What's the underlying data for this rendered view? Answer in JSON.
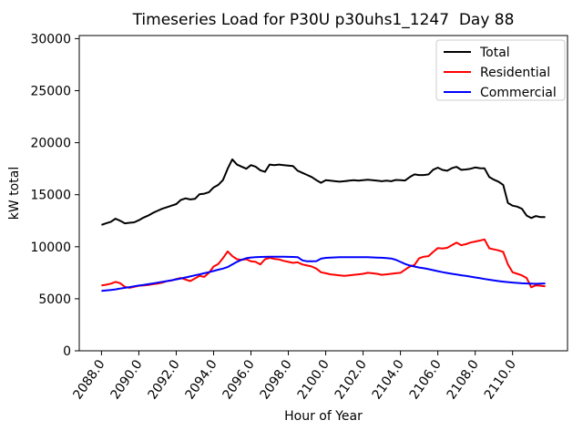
{
  "chart_data": {
    "type": "line",
    "title": "Timeseries Load for P30U p30uhs1_1247  Day 88",
    "xlabel": "Hour of Year",
    "ylabel": "kW total",
    "grid": false,
    "legend_position": "upper right",
    "xlim": [
      2086.81,
      2112.94
    ],
    "ylim": [
      0,
      30300
    ],
    "xtick_values": [
      2088,
      2090,
      2092,
      2094,
      2096,
      2098,
      2100,
      2102,
      2104,
      2106,
      2108,
      2110
    ],
    "xtick_labels": [
      "2088.0",
      "2090.0",
      "2092.0",
      "2094.0",
      "2096.0",
      "2098.0",
      "2100.0",
      "2102.0",
      "2104.0",
      "2106.0",
      "2108.0",
      "2110.0"
    ],
    "ytick_values": [
      0,
      5000,
      10000,
      15000,
      20000,
      25000,
      30000
    ],
    "ytick_labels": [
      "0",
      "5000",
      "10000",
      "15000",
      "20000",
      "25000",
      "30000"
    ],
    "x": [
      2088.0,
      2088.25,
      2088.5,
      2088.75,
      2089.0,
      2089.25,
      2089.5,
      2089.75,
      2090.0,
      2090.25,
      2090.5,
      2090.75,
      2091.0,
      2091.25,
      2091.5,
      2091.75,
      2092.0,
      2092.25,
      2092.5,
      2092.75,
      2093.0,
      2093.25,
      2093.5,
      2093.75,
      2094.0,
      2094.25,
      2094.5,
      2094.75,
      2095.0,
      2095.25,
      2095.5,
      2095.75,
      2096.0,
      2096.25,
      2096.5,
      2096.75,
      2097.0,
      2097.25,
      2097.5,
      2097.75,
      2098.0,
      2098.25,
      2098.5,
      2098.75,
      2099.0,
      2099.25,
      2099.5,
      2099.75,
      2100.0,
      2100.25,
      2100.5,
      2100.75,
      2101.0,
      2101.25,
      2101.5,
      2101.75,
      2102.0,
      2102.25,
      2102.5,
      2102.75,
      2103.0,
      2103.25,
      2103.5,
      2103.75,
      2104.0,
      2104.25,
      2104.5,
      2104.75,
      2105.0,
      2105.25,
      2105.5,
      2105.75,
      2106.0,
      2106.25,
      2106.5,
      2106.75,
      2107.0,
      2107.25,
      2107.5,
      2107.75,
      2108.0,
      2108.25,
      2108.5,
      2108.75,
      2109.0,
      2109.25,
      2109.5,
      2109.75,
      2110.0,
      2110.25,
      2110.5,
      2110.75,
      2111.0,
      2111.25,
      2111.5,
      2111.75
    ],
    "series": [
      {
        "name": "Total",
        "color": "#000000",
        "values": [
          12100,
          12250,
          12400,
          12700,
          12500,
          12250,
          12300,
          12350,
          12550,
          12800,
          13000,
          13250,
          13450,
          13650,
          13800,
          13950,
          14100,
          14500,
          14650,
          14550,
          14600,
          15050,
          15100,
          15250,
          15700,
          15950,
          16400,
          17500,
          18400,
          17900,
          17700,
          17500,
          17850,
          17700,
          17350,
          17200,
          17900,
          17850,
          17900,
          17850,
          17800,
          17750,
          17300,
          17100,
          16900,
          16700,
          16400,
          16150,
          16400,
          16350,
          16300,
          16250,
          16300,
          16350,
          16400,
          16350,
          16400,
          16450,
          16400,
          16350,
          16300,
          16350,
          16300,
          16420,
          16400,
          16370,
          16700,
          16950,
          16890,
          16890,
          16950,
          17400,
          17600,
          17380,
          17300,
          17550,
          17680,
          17390,
          17430,
          17500,
          17620,
          17550,
          17530,
          16700,
          16450,
          16250,
          15950,
          14200,
          13950,
          13850,
          13650,
          13000,
          12760,
          12950,
          12850,
          12850
        ]
      },
      {
        "name": "Residential",
        "color": "#ff0000",
        "values": [
          6280,
          6350,
          6450,
          6620,
          6500,
          6150,
          6050,
          6150,
          6250,
          6280,
          6320,
          6400,
          6450,
          6550,
          6700,
          6750,
          6900,
          7000,
          6850,
          6700,
          6950,
          7200,
          7100,
          7500,
          8100,
          8350,
          8900,
          9550,
          9100,
          8800,
          8750,
          8800,
          8600,
          8550,
          8300,
          8800,
          8930,
          8840,
          8780,
          8640,
          8550,
          8450,
          8500,
          8300,
          8200,
          8100,
          7900,
          7550,
          7450,
          7350,
          7300,
          7250,
          7200,
          7250,
          7300,
          7350,
          7400,
          7500,
          7450,
          7400,
          7300,
          7350,
          7400,
          7450,
          7500,
          7800,
          8100,
          8250,
          8900,
          9050,
          9100,
          9500,
          9870,
          9830,
          9900,
          10150,
          10400,
          10150,
          10250,
          10400,
          10500,
          10600,
          10700,
          9850,
          9750,
          9650,
          9500,
          8300,
          7550,
          7400,
          7250,
          7000,
          6100,
          6300,
          6250,
          6200
        ]
      },
      {
        "name": "Commercial",
        "color": "#0000ff",
        "values": [
          5750,
          5800,
          5850,
          5900,
          5980,
          6050,
          6120,
          6200,
          6270,
          6330,
          6400,
          6470,
          6550,
          6630,
          6700,
          6780,
          6870,
          6950,
          7050,
          7150,
          7250,
          7350,
          7450,
          7560,
          7670,
          7790,
          7900,
          8050,
          8300,
          8550,
          8750,
          8900,
          8970,
          9000,
          9020,
          9030,
          9040,
          9040,
          9040,
          9040,
          9030,
          9020,
          9000,
          8700,
          8600,
          8600,
          8620,
          8850,
          8930,
          8960,
          8980,
          8990,
          9000,
          9000,
          9000,
          9000,
          9000,
          8990,
          8980,
          8960,
          8940,
          8910,
          8870,
          8750,
          8550,
          8350,
          8200,
          8100,
          8000,
          7930,
          7850,
          7750,
          7650,
          7560,
          7480,
          7400,
          7330,
          7260,
          7200,
          7130,
          7050,
          6980,
          6900,
          6830,
          6760,
          6700,
          6650,
          6600,
          6560,
          6520,
          6490,
          6470,
          6450,
          6440,
          6450,
          6470
        ]
      }
    ]
  }
}
